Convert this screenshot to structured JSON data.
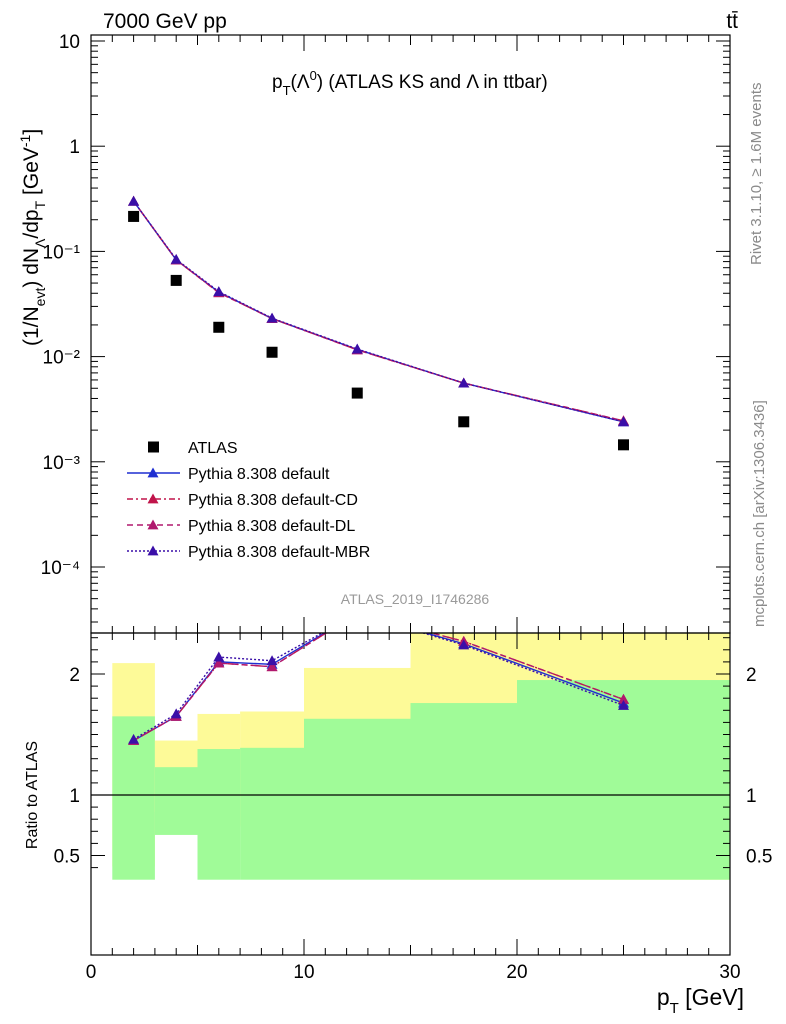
{
  "header": {
    "energy_label": "7000 GeV pp",
    "process_label": "tt̄",
    "plot_title": "p_T(Λ⁰) (ATLAS KS and Λ in ttbar)",
    "analysis_id": "ATLAS_2019_I1746286",
    "side_label_top": "Rivet 3.1.10, ≥ 1.6M events",
    "side_label_bottom": "mcplots.cern.ch [arXiv:1306.3436]"
  },
  "colors": {
    "atlas": "#000000",
    "default": "#1f2fd1",
    "cd": "#c0144a",
    "dl": "#b0186e",
    "mbr": "#3a0fa8",
    "band_inner": "#a0fb98",
    "band_outer": "#fdfa98"
  },
  "chart_data": [
    {
      "type": "scatter",
      "title": "p_T(Λ⁰) (ATLAS KS and Λ in ttbar)",
      "ylabel": "(1/N_evt) dN_Λ/dp_T [GeV⁻¹]",
      "xlabel": "",
      "xlim": [
        0,
        30
      ],
      "ylim": [
        3e-05,
        12
      ],
      "yscale": "log",
      "ytick_labels": [
        "10",
        "1",
        "10⁻¹",
        "10⁻²",
        "10⁻³",
        "10⁻⁴"
      ],
      "legend_position": "lower-left",
      "x": [
        2,
        4,
        6,
        8.5,
        12.5,
        17.5,
        25
      ],
      "series": [
        {
          "name": "ATLAS",
          "marker": "square",
          "values": [
            0.215,
            0.053,
            0.019,
            0.011,
            0.0045,
            0.0024,
            0.00145
          ]
        },
        {
          "name": "Pythia 8.308 default",
          "marker": "triangle",
          "line": "solid",
          "values": [
            0.3,
            0.083,
            0.041,
            0.023,
            0.0117,
            0.0056,
            0.0024
          ]
        },
        {
          "name": "Pythia 8.308 default-CD",
          "marker": "triangle",
          "line": "dashdot",
          "values": [
            0.3,
            0.083,
            0.0405,
            0.023,
            0.0116,
            0.0056,
            0.00245
          ]
        },
        {
          "name": "Pythia 8.308 default-DL",
          "marker": "triangle",
          "line": "dashed",
          "values": [
            0.3,
            0.083,
            0.0405,
            0.023,
            0.0116,
            0.0056,
            0.00245
          ]
        },
        {
          "name": "Pythia 8.308 default-MBR",
          "marker": "triangle",
          "line": "dotted",
          "values": [
            0.3,
            0.084,
            0.0415,
            0.0232,
            0.0118,
            0.0056,
            0.0024
          ]
        }
      ]
    },
    {
      "type": "line",
      "ylabel": "Ratio to ATLAS",
      "xlabel": "p_T [GeV]",
      "xlim": [
        0,
        30
      ],
      "ylim": [
        0.35,
        2.35
      ],
      "xtick_labels": [
        "0",
        "10",
        "20",
        "30"
      ],
      "ytick_labels": [
        "0.5",
        "1",
        "2"
      ],
      "x": [
        2,
        4,
        6,
        8.5,
        12.5,
        17.5,
        25
      ],
      "bands": {
        "edges": [
          1,
          3,
          5,
          7,
          10,
          15,
          20,
          30
        ],
        "inner_low": [
          0.3,
          0.67,
          0.3,
          0.3,
          0.3,
          0.3,
          0.3
        ],
        "inner_high": [
          1.65,
          1.23,
          1.38,
          1.39,
          1.63,
          1.76,
          1.95
        ],
        "outer_low": [
          0.41,
          0.86,
          0.75,
          0.74,
          0.44,
          0.3,
          0.3
        ],
        "outer_high": [
          2.09,
          1.45,
          1.67,
          1.69,
          2.05,
          2.5,
          2.5
        ]
      },
      "series": [
        {
          "name": "Pythia 8.308 default",
          "values": [
            1.45,
            1.65,
            2.1,
            2.08,
            2.5,
            2.25,
            1.76
          ]
        },
        {
          "name": "Pythia 8.308 default-CD",
          "values": [
            1.45,
            1.65,
            2.09,
            2.06,
            2.5,
            2.27,
            1.79
          ]
        },
        {
          "name": "Pythia 8.308 default-DL",
          "values": [
            1.45,
            1.65,
            2.09,
            2.06,
            2.5,
            2.27,
            1.79
          ]
        },
        {
          "name": "Pythia 8.308 default-MBR",
          "values": [
            1.46,
            1.67,
            2.14,
            2.11,
            2.5,
            2.24,
            1.74
          ]
        }
      ]
    }
  ]
}
